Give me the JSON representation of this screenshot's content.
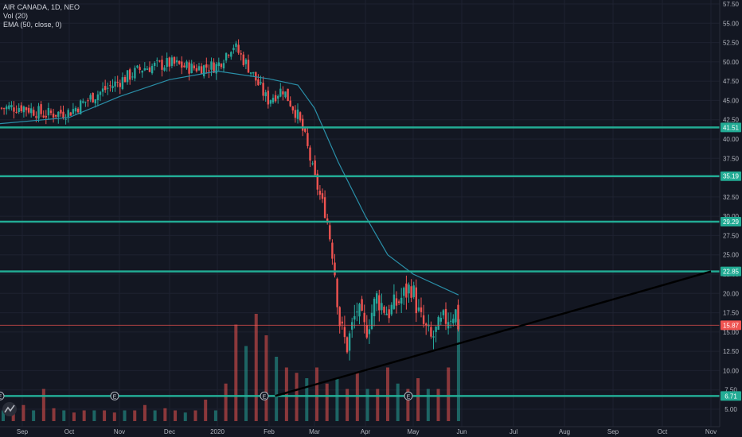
{
  "legend": {
    "symbol": "AIR CANADA, 1D, NEO",
    "volume": "Vol (20)",
    "ema": "EMA (50, close, 0)"
  },
  "logo": "tradingview-logo-icon",
  "colors": {
    "background": "#131722",
    "grid": "#1e2230",
    "up": "#26a69a",
    "down": "#ef5350",
    "ema": "#2a8fa8",
    "hline": "#22ab94",
    "trendline": "#000000",
    "price_line": "#ef5350",
    "axis_text": "#b2b5be"
  },
  "chart_data": {
    "type": "candlestick",
    "title": "AIR CANADA, 1D, NEO",
    "y_axis": {
      "ticks": [
        "57.50",
        "55.00",
        "52.50",
        "50.00",
        "47.50",
        "45.00",
        "42.50",
        "40.00",
        "37.50",
        "35.00",
        "32.50",
        "30.00",
        "27.50",
        "25.00",
        "22.50",
        "20.00",
        "17.50",
        "15.00",
        "12.50",
        "10.00",
        "7.50",
        "5.00"
      ],
      "ylim": [
        5.0,
        57.5
      ]
    },
    "x_axis": {
      "ticks": [
        "Sep",
        "Oct",
        "Nov",
        "Dec",
        "2020",
        "Feb",
        "Mar",
        "Apr",
        "May",
        "Jun",
        "Jul",
        "Aug",
        "Sep",
        "Oct",
        "Nov"
      ]
    },
    "close_series": [
      {
        "date": "Aug",
        "close": 44
      },
      {
        "date": "Sep",
        "close": 44.2
      },
      {
        "date": "Sep 15",
        "close": 43.2
      },
      {
        "date": "Oct",
        "close": 43.5
      },
      {
        "date": "Oct 15",
        "close": 45.5
      },
      {
        "date": "Nov",
        "close": 47.5
      },
      {
        "date": "Nov 15",
        "close": 49.2
      },
      {
        "date": "Dec",
        "close": 49.8
      },
      {
        "date": "Dec 15",
        "close": 49.2
      },
      {
        "date": "Jan 2020",
        "close": 49.5
      },
      {
        "date": "Jan 10",
        "close": 52.3
      },
      {
        "date": "Jan 20",
        "close": 49.0
      },
      {
        "date": "Jan 30",
        "close": 45.0
      },
      {
        "date": "Feb 10",
        "close": 46.5
      },
      {
        "date": "Feb 20",
        "close": 43.0
      },
      {
        "date": "Feb 25",
        "close": 40.0
      },
      {
        "date": "Mar 1",
        "close": 35.0
      },
      {
        "date": "Mar 8",
        "close": 30.0
      },
      {
        "date": "Mar 12",
        "close": 25.0
      },
      {
        "date": "Mar 16",
        "close": 16.0
      },
      {
        "date": "Mar 20",
        "close": 13.0
      },
      {
        "date": "Mar 26",
        "close": 18.0
      },
      {
        "date": "Apr 1",
        "close": 15.0
      },
      {
        "date": "Apr 8",
        "close": 19.5
      },
      {
        "date": "Apr 15",
        "close": 17.5
      },
      {
        "date": "Apr 22",
        "close": 19.0
      },
      {
        "date": "Apr 30",
        "close": 21.0
      },
      {
        "date": "May 5",
        "close": 16.8
      },
      {
        "date": "May 12",
        "close": 14.0
      },
      {
        "date": "May 20",
        "close": 16.5
      },
      {
        "date": "May 27",
        "close": 17.8
      },
      {
        "date": "May 29",
        "close": 15.87
      }
    ],
    "ema_series": [
      {
        "date": "Aug",
        "value": 42.0
      },
      {
        "date": "Oct",
        "value": 42.8
      },
      {
        "date": "Nov",
        "value": 45.5
      },
      {
        "date": "Dec",
        "value": 47.7
      },
      {
        "date": "Jan 2020",
        "value": 48.8
      },
      {
        "date": "Feb",
        "value": 47.8
      },
      {
        "date": "Feb 20",
        "value": 47.0
      },
      {
        "date": "Mar",
        "value": 44.0
      },
      {
        "date": "Mar 15",
        "value": 37.0
      },
      {
        "date": "Apr",
        "value": 30.0
      },
      {
        "date": "Apr 15",
        "value": 25.0
      },
      {
        "date": "May",
        "value": 22.5
      },
      {
        "date": "May 29",
        "value": 19.8
      }
    ],
    "volume": {
      "label": "Vol (20)",
      "relative_values": [
        0.1,
        0.12,
        0.15,
        0.1,
        0.3,
        0.12,
        0.1,
        0.08,
        0.1,
        0.1,
        0.1,
        0.08,
        0.1,
        0.1,
        0.15,
        0.1,
        0.12,
        0.1,
        0.08,
        0.1,
        0.2,
        0.1,
        0.35,
        0.9,
        0.7,
        1.0,
        0.8,
        0.6,
        0.5,
        0.45,
        0.4,
        0.5,
        0.35,
        0.4,
        0.3,
        0.45,
        0.3,
        0.3,
        0.5,
        0.35,
        0.3,
        0.4,
        0.3,
        0.3,
        0.5,
        0.95
      ]
    },
    "horizontal_levels": [
      {
        "value": 41.51,
        "label": "41.51"
      },
      {
        "value": 35.19,
        "label": "35.19"
      },
      {
        "value": 29.29,
        "label": "29.29"
      },
      {
        "value": 22.85,
        "label": "22.85"
      },
      {
        "value": 6.71,
        "label": "6.71"
      }
    ],
    "current_price": {
      "value": 15.87,
      "label": "15.87"
    },
    "trendline": {
      "from": {
        "date": "Feb 5",
        "price": 6.71
      },
      "to": {
        "date": "Nov",
        "price": 22.85
      }
    },
    "earnings_markers": [
      "E",
      "E",
      "E",
      "E"
    ],
    "earnings_marker_dates": [
      "Nov",
      "Feb",
      "May",
      "Aug"
    ],
    "grid": true,
    "legend_position": "top-left"
  }
}
